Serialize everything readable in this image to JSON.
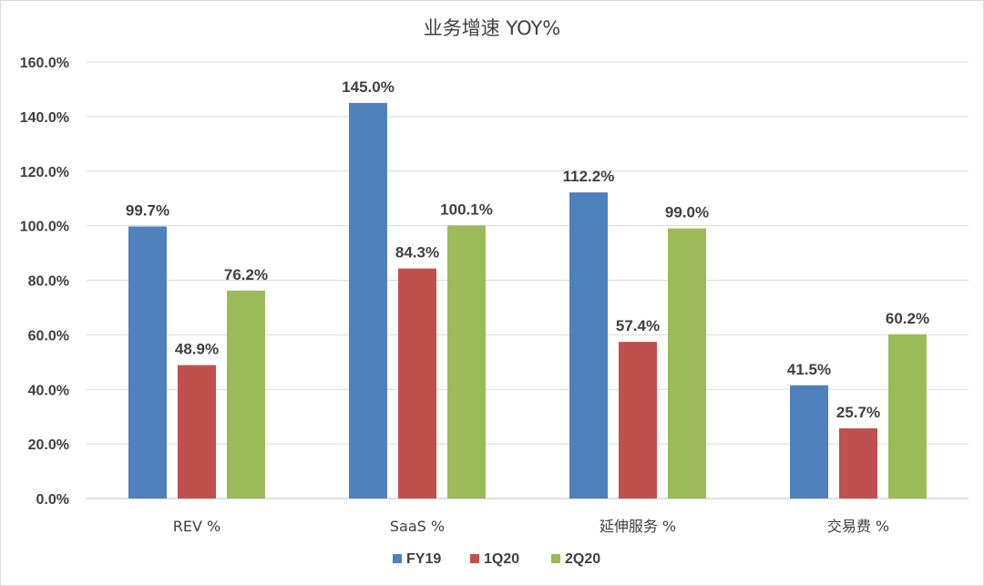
{
  "chart_data": {
    "type": "bar",
    "title": "业务增速 YOY%",
    "categories": [
      "REV %",
      "SaaS %",
      "延伸服务 %",
      "交易费 %"
    ],
    "series": [
      {
        "name": "FY19",
        "color": "#4f81bd",
        "values": [
          99.7,
          145.0,
          112.2,
          41.5
        ]
      },
      {
        "name": "1Q20",
        "color": "#c0504d",
        "values": [
          48.9,
          84.3,
          57.4,
          25.7
        ]
      },
      {
        "name": "2Q20",
        "color": "#9bbb59",
        "values": [
          76.2,
          100.1,
          99.0,
          60.2
        ]
      }
    ],
    "ylim": [
      0,
      160
    ],
    "yticks": [
      0,
      20,
      40,
      60,
      80,
      100,
      120,
      140,
      160
    ],
    "ytick_labels": [
      "0.0%",
      "20.0%",
      "40.0%",
      "60.0%",
      "80.0%",
      "100.0%",
      "120.0%",
      "140.0%",
      "160.0%"
    ],
    "data_labels": [
      [
        "99.7%",
        "145.0%",
        "112.2%",
        "41.5%"
      ],
      [
        "48.9%",
        "84.3%",
        "57.4%",
        "25.7%"
      ],
      [
        "76.2%",
        "100.1%",
        "99.0%",
        "60.2%"
      ]
    ],
    "grid": true,
    "legend_position": "bottom"
  }
}
